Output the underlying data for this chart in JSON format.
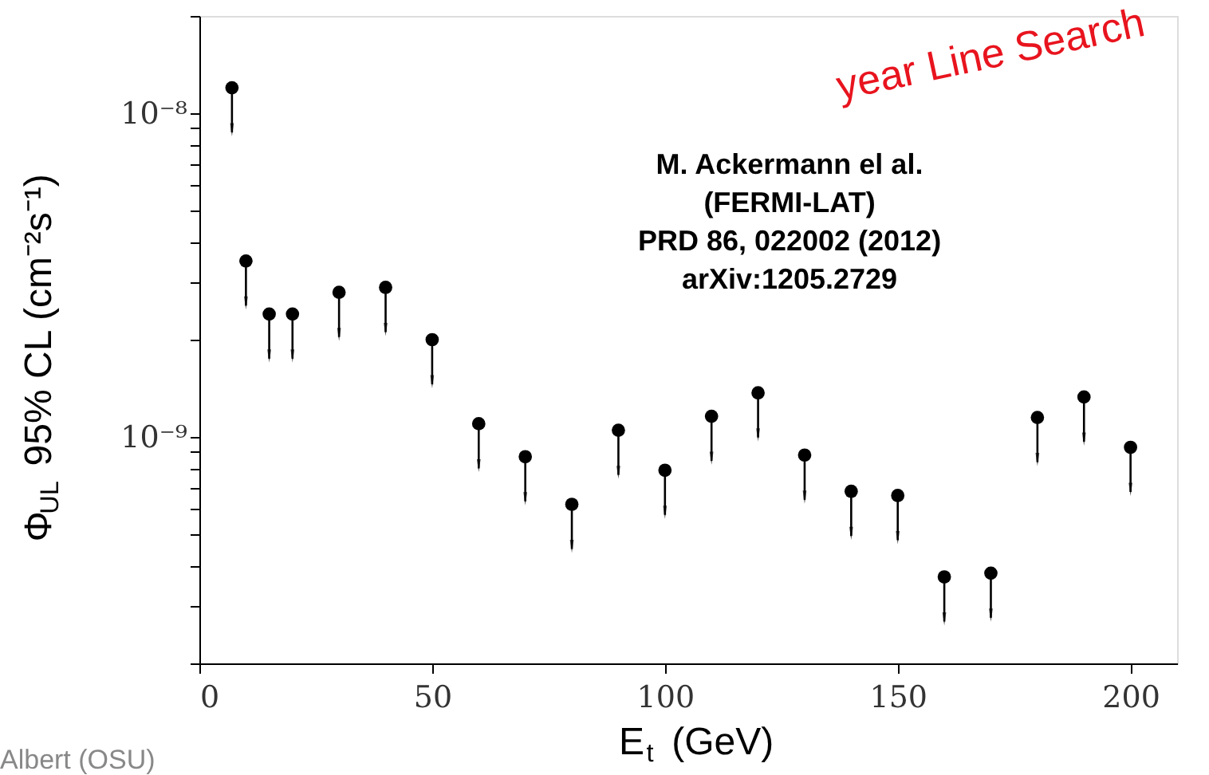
{
  "chart_data": {
    "type": "scatter",
    "xlabel": "E$_{t}$ (GeV)",
    "ylabel": "Φ$_{UL}$ 95% CL (cm⁻²s⁻¹)",
    "x": [
      7,
      10,
      15,
      20,
      30,
      40,
      50,
      60,
      70,
      80,
      90,
      100,
      110,
      120,
      130,
      140,
      150,
      160,
      170,
      180,
      190,
      200
    ],
    "series": [
      {
        "color": "#000000",
        "values": [
          1.2e-08,
          3.5e-09,
          2.4e-09,
          2.4e-09,
          2.8e-09,
          2.9e-09,
          2e-09,
          1.1e-09,
          8.7e-10,
          6.2e-10,
          1.05e-09,
          7.9e-10,
          1.16e-09,
          1.37e-09,
          8.8e-10,
          6.8e-10,
          6.6e-10,
          3.7e-10,
          3.8e-10,
          1.15e-09,
          1.33e-09,
          9.3e-10
        ]
      }
    ],
    "marker": "circle",
    "log": "y",
    "xlim": [
      0,
      210
    ],
    "xticks": [
      0,
      50,
      100,
      150,
      200
    ],
    "ylim": [
      2e-10,
      2e-08
    ],
    "yticks": [
      {
        "value": 2e-10,
        "label": null
      },
      {
        "value": 3e-10,
        "label": null
      },
      {
        "value": 4e-10,
        "label": null
      },
      {
        "value": 5e-10,
        "label": null
      },
      {
        "value": 6e-10,
        "label": null
      },
      {
        "value": 7e-10,
        "label": null
      },
      {
        "value": 8e-10,
        "label": null
      },
      {
        "value": 9e-10,
        "label": null
      },
      {
        "value": 1e-09,
        "label": "10⁻⁹"
      },
      {
        "value": 2e-09,
        "label": null
      },
      {
        "value": 3e-09,
        "label": null
      },
      {
        "value": 4e-09,
        "label": null
      },
      {
        "value": 5e-09,
        "label": null
      },
      {
        "value": 6e-09,
        "label": null
      },
      {
        "value": 7e-09,
        "label": null
      },
      {
        "value": 8e-09,
        "label": null
      },
      {
        "value": 9e-09,
        "label": null
      },
      {
        "value": 1e-08,
        "label": "10⁻⁸"
      },
      {
        "value": 2e-08,
        "label": null
      }
    ],
    "grid": false,
    "annotations": [
      "M. Ackermann el al.\n(FERMI-LAT)\nPRD 86, 022002 (2012)\narXiv:1205.2729",
      "year Line Search",
      "Albert (OSU)"
    ]
  }
}
